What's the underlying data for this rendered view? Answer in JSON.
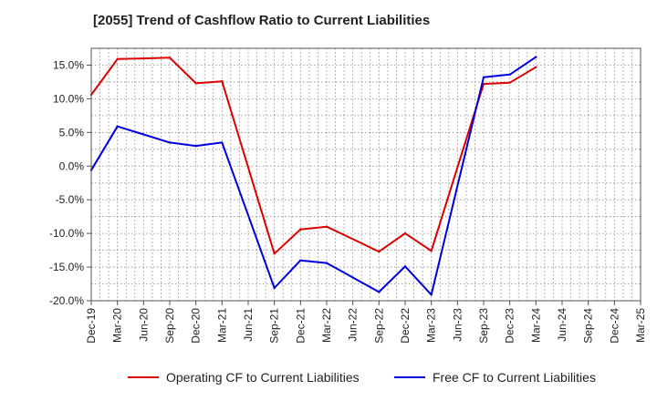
{
  "chart_data": {
    "type": "line",
    "title": "[2055]  Trend of Cashflow Ratio to Current Liabilities",
    "xlabel": "",
    "ylabel": "",
    "ylim": [
      -20,
      17.5
    ],
    "yticks": [
      15,
      10,
      5,
      0,
      -5,
      -10,
      -15,
      -20
    ],
    "ytick_labels": [
      "15.0%",
      "10.0%",
      "5.0%",
      "0.0%",
      "-5.0%",
      "-10.0%",
      "-15.0%",
      "-20.0%"
    ],
    "x": [
      "Dec-19",
      "Mar-20",
      "Jun-20",
      "Sep-20",
      "Dec-20",
      "Mar-21",
      "Jun-21",
      "Sep-21",
      "Dec-21",
      "Mar-22",
      "Jun-22",
      "Sep-22",
      "Dec-22",
      "Mar-23",
      "Jun-23",
      "Sep-23",
      "Dec-23",
      "Mar-24",
      "Jun-24",
      "Sep-24",
      "Dec-24",
      "Mar-25"
    ],
    "grid": true,
    "legend_position": "bottom",
    "series": [
      {
        "name": "Operating CF to Current Liabilities",
        "color": "#dd0000",
        "values": [
          10.6,
          15.9,
          16.0,
          16.1,
          12.3,
          12.6,
          null,
          -13.0,
          -9.4,
          -9.0,
          null,
          -12.7,
          -10.0,
          -12.6,
          null,
          12.2,
          12.4,
          14.7,
          null,
          null,
          null,
          null
        ]
      },
      {
        "name": "Free CF to Current Liabilities",
        "color": "#0000dd",
        "values": [
          -0.6,
          5.9,
          null,
          3.5,
          3.0,
          3.5,
          null,
          -18.1,
          -14.0,
          -14.4,
          null,
          -18.7,
          -14.9,
          -19.1,
          null,
          13.2,
          13.6,
          16.2,
          null,
          null,
          null,
          null
        ]
      }
    ]
  }
}
